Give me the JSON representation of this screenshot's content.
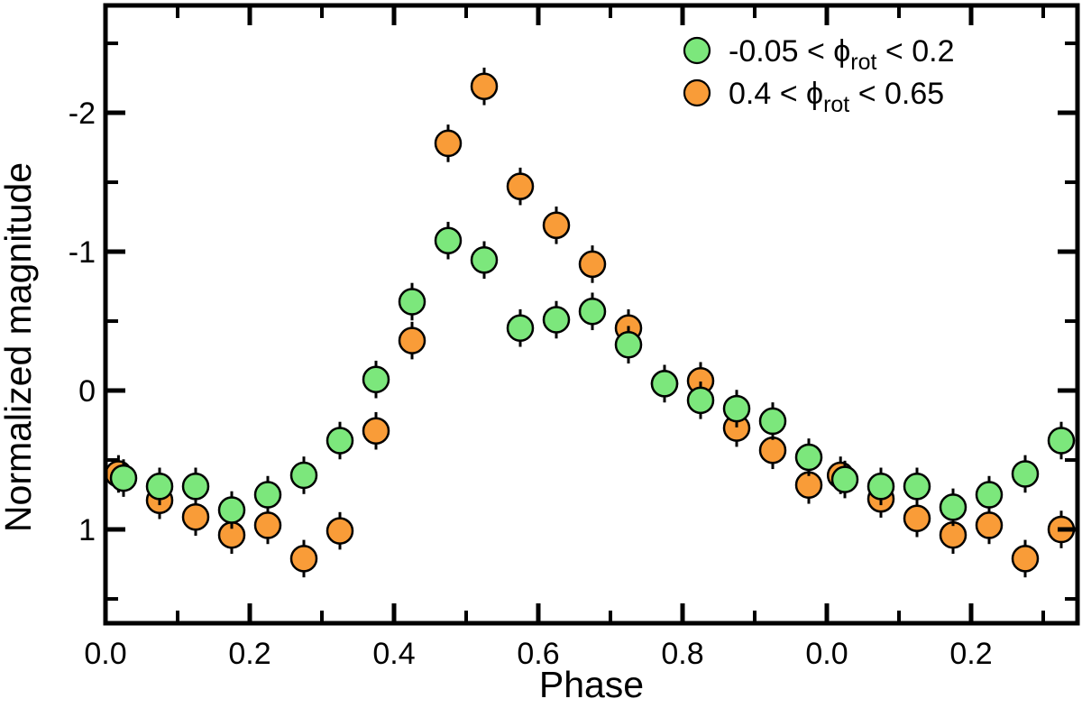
{
  "figure": {
    "background": "#ffffff",
    "frame_color": "#000000"
  },
  "chart_data": {
    "type": "scatter",
    "title": "",
    "xlabel": "Phase",
    "ylabel": "Normalized magnitude",
    "x_range": [
      0,
      1.3475
    ],
    "y_range_top_bottom": [
      -2.773,
      1.675
    ],
    "y_axis_inverted": true,
    "grid": false,
    "x_major_ticks": [
      0.0,
      0.2,
      0.4,
      0.6,
      0.8,
      1.0,
      1.2
    ],
    "x_major_labels": [
      "0.0",
      "0.2",
      "0.4",
      "0.6",
      "0.8",
      "0.0",
      "0.2"
    ],
    "x_minor_ticks": [
      0.1,
      0.3,
      0.5,
      0.7,
      0.9,
      1.1,
      1.3
    ],
    "y_major_ticks": [
      -2,
      -1,
      0,
      1
    ],
    "y_major_labels": [
      "-2",
      "-1",
      "0",
      "1"
    ],
    "y_minor_ticks": [
      -2.5,
      -1.5,
      -0.5,
      0.5,
      1.5
    ],
    "legend_position": "top-right",
    "legend_order": [
      "green",
      "orange"
    ],
    "series": [
      {
        "name": "orange",
        "label": "0.4 < ϕrot < 0.65",
        "label_parts": {
          "before": "0.4 <  ϕ",
          "subscript": "rot",
          "after": " < 0.65"
        },
        "color": "#F99C38",
        "edge_color": "#000000",
        "error_mag": 0.135,
        "points": [
          [
            0.018,
            0.6
          ],
          [
            0.075,
            0.79
          ],
          [
            0.125,
            0.91
          ],
          [
            0.175,
            1.04
          ],
          [
            0.225,
            0.97
          ],
          [
            0.275,
            1.21
          ],
          [
            0.325,
            1.01
          ],
          [
            0.375,
            0.29
          ],
          [
            0.425,
            -0.36
          ],
          [
            0.475,
            -1.78
          ],
          [
            0.525,
            -2.19
          ],
          [
            0.575,
            -1.47
          ],
          [
            0.625,
            -1.19
          ],
          [
            0.675,
            -0.91
          ],
          [
            0.725,
            -0.45
          ],
          [
            0.775,
            -0.05
          ],
          [
            0.825,
            -0.07
          ],
          [
            0.875,
            0.27
          ],
          [
            0.925,
            0.43
          ],
          [
            0.975,
            0.68
          ],
          [
            1.019,
            0.61
          ],
          [
            1.075,
            0.78
          ],
          [
            1.125,
            0.92
          ],
          [
            1.175,
            1.04
          ],
          [
            1.225,
            0.97
          ],
          [
            1.275,
            1.21
          ],
          [
            1.325,
            1.0
          ]
        ]
      },
      {
        "name": "green",
        "label": "-0.05 < ϕrot < 0.2",
        "label_parts": {
          "before": "-0.05 < ϕ",
          "subscript": "rot",
          "after": " < 0.2"
        },
        "color": "#7CE77C",
        "edge_color": "#000000",
        "error_mag": 0.135,
        "points": [
          [
            0.025,
            0.63
          ],
          [
            0.075,
            0.69
          ],
          [
            0.125,
            0.69
          ],
          [
            0.175,
            0.86
          ],
          [
            0.225,
            0.75
          ],
          [
            0.275,
            0.61
          ],
          [
            0.325,
            0.36
          ],
          [
            0.375,
            -0.08
          ],
          [
            0.425,
            -0.64
          ],
          [
            0.475,
            -1.08
          ],
          [
            0.525,
            -0.94
          ],
          [
            0.575,
            -0.45
          ],
          [
            0.625,
            -0.51
          ],
          [
            0.675,
            -0.57
          ],
          [
            0.725,
            -0.33
          ],
          [
            0.775,
            -0.05
          ],
          [
            0.825,
            0.07
          ],
          [
            0.875,
            0.13
          ],
          [
            0.925,
            0.22
          ],
          [
            0.975,
            0.48
          ],
          [
            1.025,
            0.64
          ],
          [
            1.075,
            0.69
          ],
          [
            1.125,
            0.69
          ],
          [
            1.175,
            0.84
          ],
          [
            1.225,
            0.75
          ],
          [
            1.275,
            0.6
          ],
          [
            1.325,
            0.36
          ]
        ]
      }
    ]
  }
}
